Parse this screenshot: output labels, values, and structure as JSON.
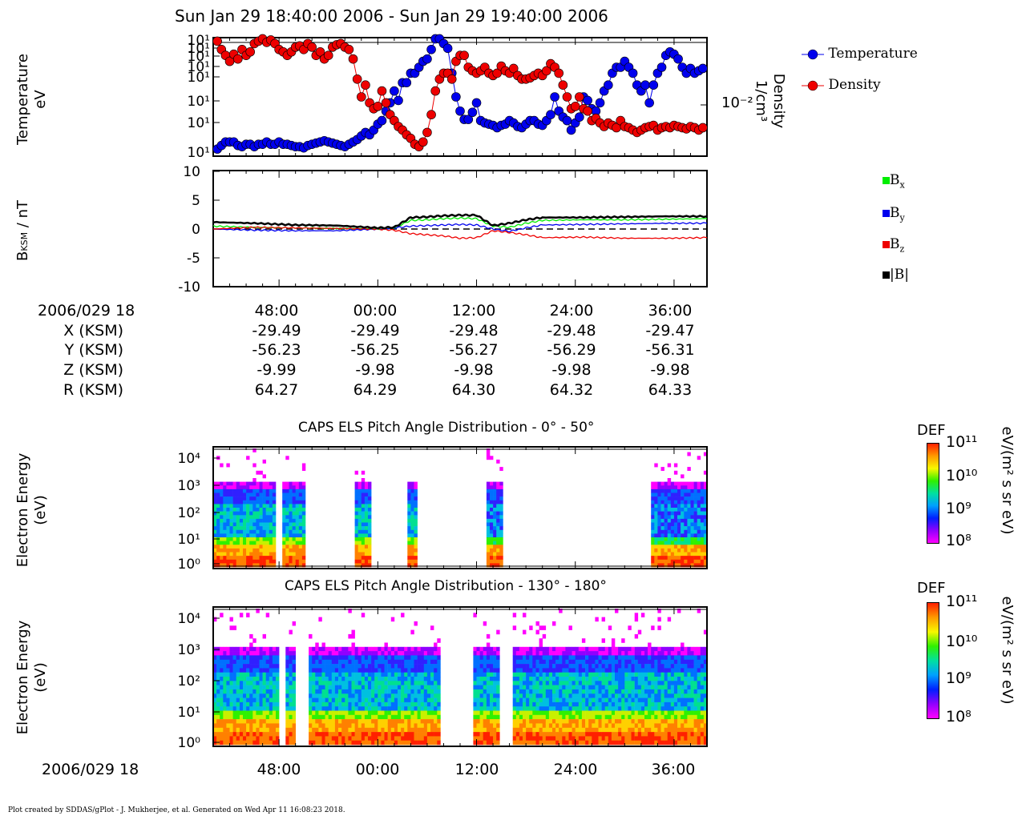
{
  "plot_title": "Sun Jan 29 18:40:00 2006 - Sun Jan 29 19:40:00 2006",
  "footer": "Plot created by SDDAS/gPlot - J. Mukherjee, et al.  Generated on Wed Apr 11 16:08:23 2018.",
  "panel1": {
    "ylabel_line1": "Temperature",
    "ylabel_line2": "eV",
    "y_ticks": [
      "10¹",
      "10¹",
      "10¹",
      "10¹",
      "10¹",
      "10¹",
      "10¹",
      "10¹"
    ],
    "right_label_line1": "Density",
    "right_label_line2": "1/cm³",
    "right_tick": "10⁻²",
    "legend": [
      {
        "label": "Temperature",
        "color": "#0000ee"
      },
      {
        "label": "Density",
        "color": "#ee0000"
      }
    ]
  },
  "panel2": {
    "ylabel": "B",
    "ylabel_sub": "KSM",
    "ylabel_tail": " / nT",
    "y_ticks": [
      "10",
      "5",
      "0",
      "-5",
      "-10"
    ],
    "legend": [
      {
        "label": "B",
        "sub": "x",
        "color": "#00ee00"
      },
      {
        "label": "B",
        "sub": "y",
        "color": "#0000ee"
      },
      {
        "label": "B",
        "sub": "z",
        "color": "#ee0000"
      },
      {
        "label": "|B|",
        "sub": "",
        "color": "#000000"
      }
    ]
  },
  "ephemeris": {
    "time_label": "2006/029 18",
    "times": [
      "48:00",
      "00:00",
      "12:00",
      "24:00",
      "36:00"
    ],
    "rows": [
      {
        "label": "X (KSM)",
        "values": [
          "-29.49",
          "-29.49",
          "-29.48",
          "-29.48",
          "-29.47"
        ]
      },
      {
        "label": "Y (KSM)",
        "values": [
          "-56.23",
          "-56.25",
          "-56.27",
          "-56.29",
          "-56.31"
        ]
      },
      {
        "label": "Z (KSM)",
        "values": [
          "-9.99",
          "-9.98",
          "-9.98",
          "-9.98",
          "-9.98"
        ]
      },
      {
        "label": "R (KSM)",
        "values": [
          "64.27",
          "64.29",
          "64.30",
          "64.32",
          "64.33"
        ]
      }
    ]
  },
  "panel3": {
    "title": "CAPS ELS Pitch Angle Distribution - 0° - 50°",
    "ylabel_line1": "Electron Energy",
    "ylabel_line2": "(eV)",
    "y_ticks": [
      "10⁴",
      "10³",
      "10²",
      "10¹",
      "10⁰"
    ],
    "colorbar_title": "DEF",
    "colorbar_ticks": [
      "10¹¹",
      "10¹⁰",
      "10⁹",
      "10⁸"
    ],
    "colorbar_unit": "eV/(m² s sr eV)"
  },
  "panel4": {
    "title": "CAPS ELS Pitch Angle Distribution - 130° - 180°",
    "ylabel_line1": "Electron Energy",
    "ylabel_line2": "(eV)",
    "y_ticks": [
      "10⁴",
      "10³",
      "10²",
      "10¹",
      "10⁰"
    ],
    "colorbar_title": "DEF",
    "colorbar_ticks": [
      "10¹¹",
      "10¹⁰",
      "10⁹",
      "10⁸"
    ],
    "colorbar_unit": "eV/(m² s sr eV)"
  },
  "bottom_axis": {
    "time_label": "2006/029 18",
    "ticks": [
      "48:00",
      "00:00",
      "12:00",
      "24:00",
      "36:00"
    ]
  },
  "chart_data": [
    {
      "type": "scatter",
      "title": "",
      "xlabel": "",
      "ylabel": "Temperature eV",
      "x_range": [
        "18:40:00",
        "19:40:00"
      ],
      "series": [
        {
          "name": "Temperature",
          "color": "#0000ee",
          "x": [
            0.5,
            1,
            1.5,
            2,
            2.5,
            3,
            3.5,
            4,
            4.5,
            5,
            5.5,
            6,
            6.5,
            7,
            7.5,
            8,
            8.5,
            9,
            9.5,
            10,
            10.5,
            11,
            11.5,
            12,
            12.5,
            13,
            13.5,
            14,
            14.5,
            15,
            15.5,
            16,
            16.5,
            17,
            17.5,
            18,
            18.5,
            19,
            19.5,
            20,
            20.5,
            21,
            21.5,
            22,
            22.5,
            23,
            23.5,
            24,
            24.5,
            25,
            25.5,
            26,
            26.5,
            27,
            27.5,
            28,
            28.5,
            29,
            29.5,
            30,
            30.5,
            31,
            31.5,
            32,
            32.5,
            33,
            33.5,
            34,
            34.5,
            35,
            35.5,
            36,
            36.5,
            37,
            37.5,
            38,
            38.5,
            39,
            39.5,
            40,
            40.5,
            41,
            41.5,
            42,
            42.5,
            43,
            43.5,
            44,
            44.5,
            45,
            45.5,
            46,
            46.5,
            47,
            47.5,
            48,
            48.5,
            49,
            49.5,
            50,
            50.5,
            51,
            51.5,
            52,
            52.5,
            53,
            53.5,
            54,
            54.5,
            55,
            55.5,
            56,
            56.5,
            57,
            57.5,
            58,
            58.5,
            59,
            59.5
          ],
          "y": [
            0.06,
            0.09,
            0.12,
            0.12,
            0.12,
            0.09,
            0.08,
            0.1,
            0.1,
            0.08,
            0.1,
            0.1,
            0.12,
            0.1,
            0.1,
            0.12,
            0.1,
            0.1,
            0.09,
            0.08,
            0.08,
            0.07,
            0.09,
            0.1,
            0.11,
            0.12,
            0.13,
            0.12,
            0.11,
            0.1,
            0.09,
            0.08,
            0.1,
            0.12,
            0.14,
            0.17,
            0.2,
            0.18,
            0.22,
            0.27,
            0.3,
            0.38,
            0.45,
            0.55,
            0.47,
            0.62,
            0.62,
            0.7,
            0.7,
            0.75,
            0.8,
            0.82,
            0.9,
            0.99,
            0.99,
            0.95,
            0.91,
            0.7,
            0.5,
            0.38,
            0.31,
            0.31,
            0.37,
            0.45,
            0.3,
            0.28,
            0.27,
            0.26,
            0.24,
            0.26,
            0.27,
            0.3,
            0.28,
            0.25,
            0.24,
            0.27,
            0.3,
            0.3,
            0.27,
            0.26,
            0.3,
            0.35,
            0.5,
            0.38,
            0.33,
            0.3,
            0.22,
            0.28,
            0.33,
            0.5,
            0.47,
            0.4,
            0.38,
            0.45,
            0.55,
            0.6,
            0.7,
            0.75,
            0.75,
            0.8,
            0.75,
            0.7,
            0.6,
            0.55,
            0.6,
            0.45,
            0.6,
            0.7,
            0.75,
            0.85,
            0.88,
            0.86,
            0.82,
            0.75,
            0.7,
            0.74,
            0.7,
            0.72,
            0.74
          ]
        },
        {
          "name": "Density",
          "color": "#ee0000",
          "x": [
            0.5,
            1,
            1.5,
            2,
            2.5,
            3,
            3.5,
            4,
            4.5,
            5,
            5.5,
            6,
            6.5,
            7,
            7.5,
            8,
            8.5,
            9,
            9.5,
            10,
            10.5,
            11,
            11.5,
            12,
            12.5,
            13,
            13.5,
            14,
            14.5,
            15,
            15.5,
            16,
            16.5,
            17,
            17.5,
            18,
            18.5,
            19,
            19.5,
            20,
            20.5,
            21,
            21.5,
            22,
            22.5,
            23,
            23.5,
            24,
            24.5,
            25,
            25.5,
            26,
            26.5,
            27,
            27.5,
            28,
            28.5,
            29,
            29.5,
            30,
            30.5,
            31,
            31.5,
            32,
            32.5,
            33,
            33.5,
            34,
            34.5,
            35,
            35.5,
            36,
            36.5,
            37,
            37.5,
            38,
            38.5,
            39,
            39.5,
            40,
            40.5,
            41,
            41.5,
            42,
            42.5,
            43,
            43.5,
            44,
            44.5,
            45,
            45.5,
            46,
            46.5,
            47,
            47.5,
            48,
            48.5,
            49,
            49.5,
            50,
            50.5,
            51,
            51.5,
            52,
            52.5,
            53,
            53.5,
            54,
            54.5,
            55,
            55.5,
            56,
            56.5,
            57,
            57.5,
            58,
            58.5,
            59,
            59.5
          ],
          "y": [
            0.97,
            0.9,
            0.85,
            0.8,
            0.86,
            0.82,
            0.9,
            0.85,
            0.88,
            0.95,
            0.97,
            0.99,
            0.96,
            0.98,
            0.95,
            0.9,
            0.88,
            0.85,
            0.88,
            0.92,
            0.93,
            0.9,
            0.95,
            0.92,
            0.85,
            0.88,
            0.82,
            0.85,
            0.92,
            0.94,
            0.95,
            0.92,
            0.9,
            0.82,
            0.65,
            0.5,
            0.6,
            0.45,
            0.4,
            0.42,
            0.55,
            0.45,
            0.35,
            0.3,
            0.25,
            0.22,
            0.18,
            0.15,
            0.1,
            0.08,
            0.12,
            0.2,
            0.35,
            0.55,
            0.65,
            0.7,
            0.7,
            0.65,
            0.8,
            0.85,
            0.85,
            0.75,
            0.72,
            0.7,
            0.72,
            0.75,
            0.7,
            0.68,
            0.7,
            0.76,
            0.72,
            0.7,
            0.74,
            0.68,
            0.65,
            0.65,
            0.66,
            0.68,
            0.7,
            0.68,
            0.72,
            0.78,
            0.75,
            0.7,
            0.6,
            0.5,
            0.4,
            0.42,
            0.5,
            0.4,
            0.38,
            0.3,
            0.32,
            0.28,
            0.25,
            0.28,
            0.26,
            0.24,
            0.3,
            0.25,
            0.24,
            0.22,
            0.2,
            0.22,
            0.24,
            0.25,
            0.26,
            0.22,
            0.24,
            0.25,
            0.24,
            0.26,
            0.25,
            0.24,
            0.23,
            0.25,
            0.24,
            0.22,
            0.24
          ]
        }
      ]
    },
    {
      "type": "line",
      "title": "",
      "xlabel": "",
      "ylabel": "BKSM / nT",
      "x_range": [
        "18:40:00",
        "19:40:00"
      ],
      "ylim": [
        -10,
        10
      ],
      "series": [
        {
          "name": "Bx",
          "color": "#00ee00",
          "x": [
            0,
            5,
            10,
            15,
            20,
            22,
            24,
            26,
            28,
            30,
            32,
            34,
            36,
            38,
            40,
            45,
            50,
            55,
            60
          ],
          "y": [
            0.5,
            0.3,
            0.2,
            0.1,
            0,
            0.2,
            1.5,
            1.6,
            1.8,
            1.9,
            1.8,
            0.5,
            0.3,
            1.0,
            1.5,
            1.6,
            1.6,
            1.7,
            1.8
          ]
        },
        {
          "name": "By",
          "color": "#0000ee",
          "x": [
            0,
            5,
            10,
            15,
            20,
            22,
            24,
            26,
            28,
            30,
            32,
            34,
            36,
            38,
            40,
            45,
            50,
            55,
            60
          ],
          "y": [
            0,
            -0.2,
            -0.3,
            -0.3,
            0,
            0.2,
            0.5,
            0.6,
            0.7,
            0.8,
            0.7,
            0,
            -0.4,
            0.2,
            0.7,
            0.8,
            0.9,
            1.0,
            1.0
          ]
        },
        {
          "name": "Bz",
          "color": "#ee0000",
          "x": [
            0,
            5,
            10,
            15,
            20,
            22,
            24,
            26,
            28,
            30,
            32,
            34,
            36,
            38,
            40,
            45,
            50,
            55,
            60
          ],
          "y": [
            0,
            0.3,
            0.2,
            0.1,
            0,
            -0.2,
            -0.8,
            -1.0,
            -1.2,
            -1.6,
            -1.5,
            -0.3,
            -0.6,
            -1.0,
            -1.5,
            -1.4,
            -1.6,
            -1.6,
            -1.5
          ]
        },
        {
          "name": "|B|",
          "color": "#000000",
          "x": [
            0,
            5,
            10,
            15,
            20,
            22,
            24,
            26,
            28,
            30,
            32,
            34,
            36,
            38,
            40,
            45,
            50,
            55,
            60
          ],
          "y": [
            1.2,
            1.0,
            0.7,
            0.6,
            0.2,
            0.3,
            2.0,
            2.1,
            2.3,
            2.4,
            2.4,
            0.6,
            1.0,
            1.6,
            2.0,
            2.0,
            2.1,
            2.2,
            2.2
          ]
        }
      ]
    },
    {
      "type": "heatmap",
      "title": "CAPS ELS Pitch Angle Distribution - 0° - 50°",
      "ylabel": "Electron Energy (eV)",
      "y_range": [
        1,
        30000
      ],
      "colorbar": {
        "label": "DEF eV/(m² s sr eV)",
        "range": [
          100000000.0,
          100000000000.0
        ]
      }
    },
    {
      "type": "heatmap",
      "title": "CAPS ELS Pitch Angle Distribution - 130° - 180°",
      "ylabel": "Electron Energy (eV)",
      "y_range": [
        1,
        30000
      ],
      "colorbar": {
        "label": "DEF eV/(m² s sr eV)",
        "range": [
          100000000.0,
          100000000000.0
        ]
      }
    }
  ]
}
